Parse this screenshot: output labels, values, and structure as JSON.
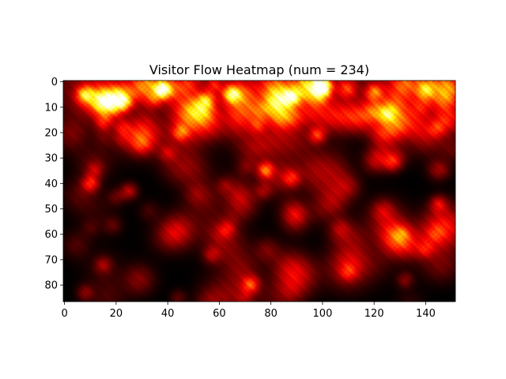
{
  "chart_data": {
    "type": "heatmap",
    "title": "Visitor Flow Heatmap (num = 234)",
    "xlabel": "",
    "ylabel": "",
    "colormap": "hot",
    "colors": {
      "low": "#000000",
      "mid": "#e60000",
      "high": "#ffff00"
    },
    "xlim": [
      0,
      151
    ],
    "ylim": [
      86,
      0
    ],
    "x_ticks": [
      0,
      20,
      40,
      60,
      80,
      100,
      120,
      140
    ],
    "y_ticks": [
      0,
      10,
      20,
      30,
      40,
      50,
      60,
      70,
      80
    ],
    "grid_size": {
      "cols": 152,
      "rows": 87
    },
    "grid": false,
    "hotspots": [
      {
        "x": 38,
        "y": 3,
        "intensity": 0.88
      },
      {
        "x": 100,
        "y": 2,
        "intensity": 0.98
      },
      {
        "x": 65,
        "y": 5,
        "intensity": 0.62
      },
      {
        "x": 88,
        "y": 6,
        "intensity": 0.58
      },
      {
        "x": 8,
        "y": 5,
        "intensity": 0.55
      },
      {
        "x": 23,
        "y": 8,
        "intensity": 0.5
      },
      {
        "x": 55,
        "y": 7,
        "intensity": 0.45
      },
      {
        "x": 120,
        "y": 4,
        "intensity": 0.45
      },
      {
        "x": 140,
        "y": 3,
        "intensity": 0.38
      },
      {
        "x": 125,
        "y": 13,
        "intensity": 0.42
      },
      {
        "x": 98,
        "y": 21,
        "intensity": 0.42
      },
      {
        "x": 45,
        "y": 20,
        "intensity": 0.36
      },
      {
        "x": 15,
        "y": 16,
        "intensity": 0.3
      },
      {
        "x": 75,
        "y": 17,
        "intensity": 0.28
      },
      {
        "x": 10,
        "y": 40,
        "intensity": 0.4
      },
      {
        "x": 25,
        "y": 43,
        "intensity": 0.3
      },
      {
        "x": 78,
        "y": 35,
        "intensity": 0.35
      },
      {
        "x": 88,
        "y": 38,
        "intensity": 0.3
      },
      {
        "x": 145,
        "y": 48,
        "intensity": 0.3
      },
      {
        "x": 127,
        "y": 32,
        "intensity": 0.25
      },
      {
        "x": 40,
        "y": 28,
        "intensity": 0.22
      },
      {
        "x": 63,
        "y": 58,
        "intensity": 0.25
      },
      {
        "x": 57,
        "y": 68,
        "intensity": 0.22
      },
      {
        "x": 72,
        "y": 80,
        "intensity": 0.3
      },
      {
        "x": 15,
        "y": 72,
        "intensity": 0.22
      },
      {
        "x": 140,
        "y": 66,
        "intensity": 0.22
      },
      {
        "x": 110,
        "y": 75,
        "intensity": 0.22
      },
      {
        "x": 8,
        "y": 83,
        "intensity": 0.2
      },
      {
        "x": 132,
        "y": 78,
        "intensity": 0.2
      }
    ]
  }
}
